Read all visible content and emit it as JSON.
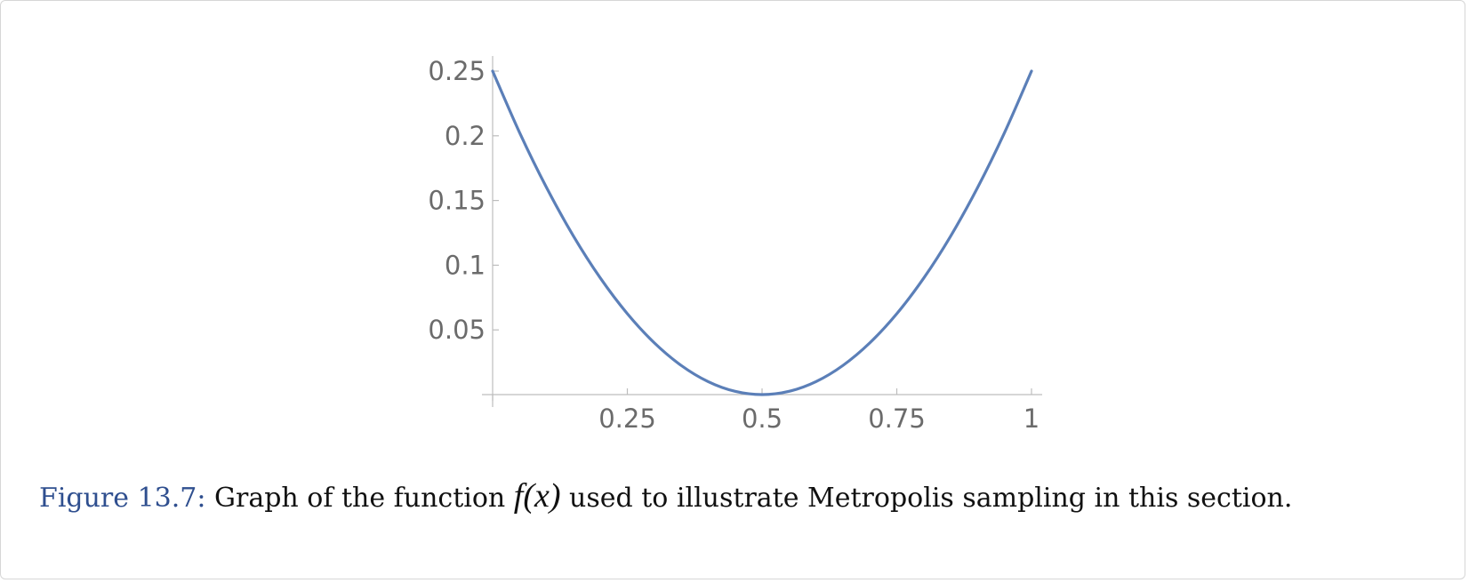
{
  "figure": {
    "label": "Figure 13.7:",
    "caption_before": " Graph of the function ",
    "math_fx": "f(x)",
    "caption_after": " used to illustrate Metropolis sampling in this section."
  },
  "chart_data": {
    "type": "line",
    "title": "",
    "xlabel": "",
    "ylabel": "",
    "function": "(x - 0.5)^2",
    "xlim": [
      0,
      1
    ],
    "ylim": [
      0,
      0.25
    ],
    "x_ticks": [
      0.25,
      0.5,
      0.75,
      1
    ],
    "x_tick_labels": [
      "0.25",
      "0.5",
      "0.75",
      "1"
    ],
    "y_ticks": [
      0.05,
      0.1,
      0.15,
      0.2,
      0.25
    ],
    "y_tick_labels": [
      "0.05",
      "0.1",
      "0.15",
      "0.2",
      "0.25"
    ],
    "series": [
      {
        "color": "#5b7fb8",
        "x": [
          0,
          0.05,
          0.1,
          0.15,
          0.2,
          0.25,
          0.3,
          0.35,
          0.4,
          0.45,
          0.5,
          0.55,
          0.6,
          0.65,
          0.7,
          0.75,
          0.8,
          0.85,
          0.9,
          0.95,
          1
        ],
        "y": [
          0.25,
          0.2025,
          0.16,
          0.1225,
          0.09,
          0.0625,
          0.04,
          0.0225,
          0.01,
          0.0025,
          0,
          0.0025,
          0.01,
          0.0225,
          0.04,
          0.0625,
          0.09,
          0.1225,
          0.16,
          0.2025,
          0.25
        ]
      }
    ],
    "grid": false,
    "axis_color": "#bdbdbd"
  }
}
